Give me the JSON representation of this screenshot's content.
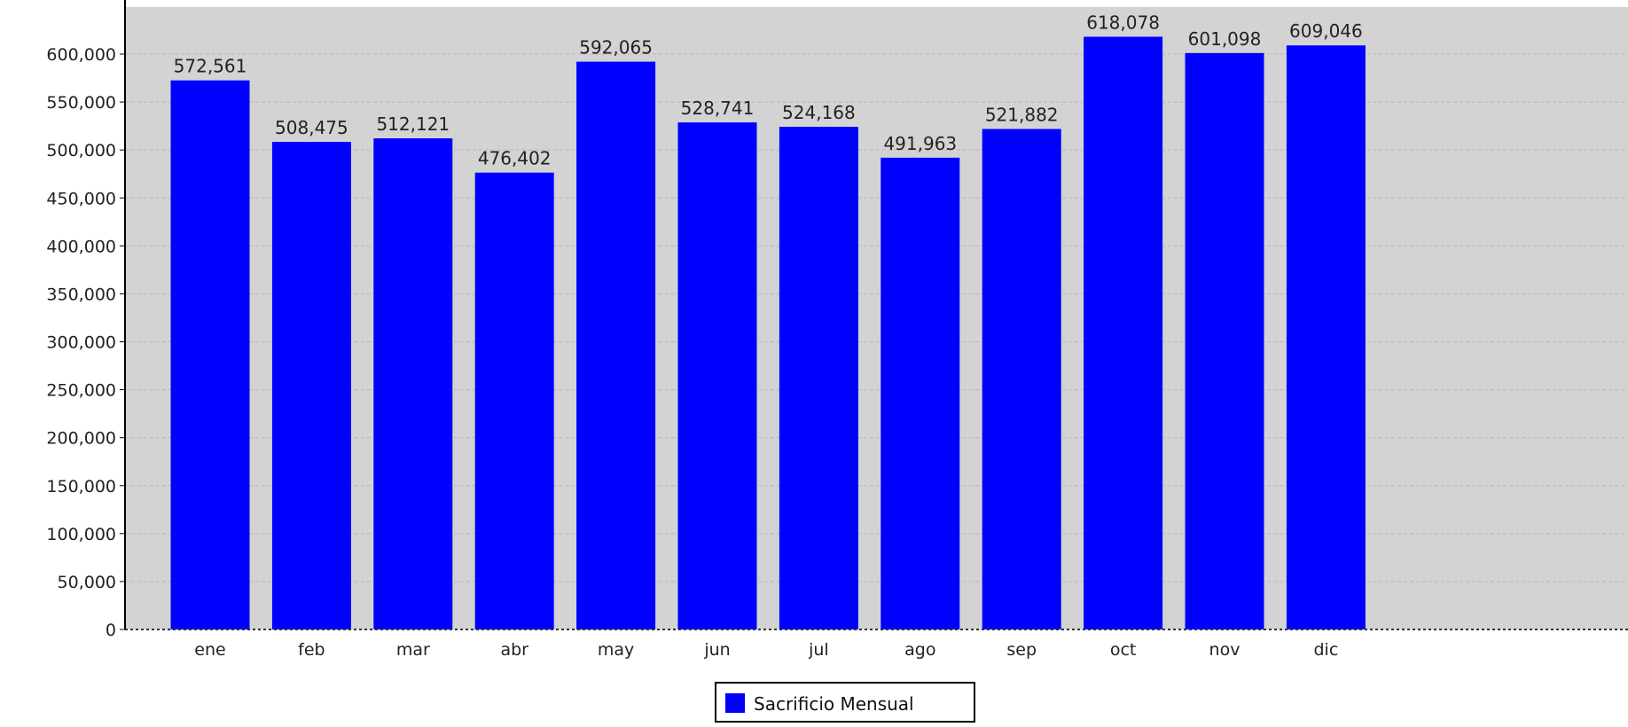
{
  "chart_data": {
    "type": "bar",
    "categories": [
      "ene",
      "feb",
      "mar",
      "abr",
      "may",
      "jun",
      "jul",
      "ago",
      "sep",
      "oct",
      "nov",
      "dic"
    ],
    "series": [
      {
        "name": "Sacrificio Mensual",
        "color": "#0000ff",
        "values": [
          572561,
          508475,
          512121,
          476402,
          592065,
          528741,
          524168,
          491963,
          521882,
          618078,
          601098,
          609046
        ],
        "value_labels": [
          "572,561",
          "508,475",
          "512,121",
          "476,402",
          "592,065",
          "528,741",
          "524,168",
          "491,963",
          "521,882",
          "618,078",
          "601,098",
          "609,046"
        ]
      }
    ],
    "ylim": [
      0,
      600000
    ],
    "yticks": [
      0,
      50000,
      100000,
      150000,
      200000,
      250000,
      300000,
      350000,
      400000,
      450000,
      500000,
      550000,
      600000
    ],
    "ytick_labels": [
      "0",
      "50,000",
      "100,000",
      "150,000",
      "200,000",
      "250,000",
      "300,000",
      "350,000",
      "400,000",
      "450,000",
      "500,000",
      "550,000",
      "600,000"
    ],
    "grid": true,
    "legend": "bottom-center",
    "plot_background": "#d3d3d3"
  }
}
